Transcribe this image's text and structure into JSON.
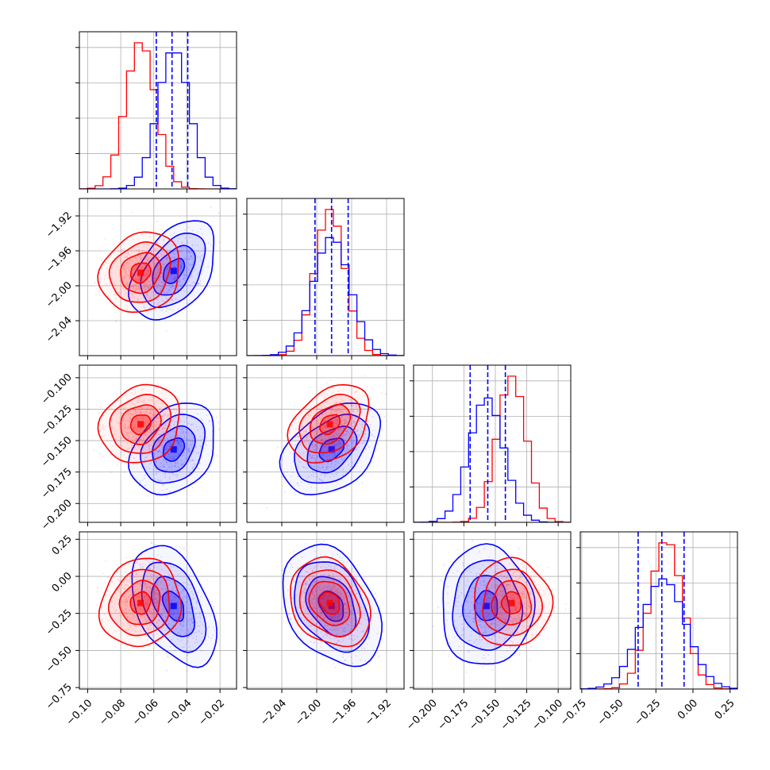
{
  "chart_data": {
    "type": "corner",
    "parameters": 4,
    "series": [
      {
        "name": "red-samples",
        "color": "#ff0000"
      },
      {
        "name": "blue-samples",
        "color": "#0000ff"
      }
    ],
    "quantile_line_color": "#0000ff",
    "axes": [
      {
        "range": [
          -0.105,
          -0.01
        ],
        "ticks": [
          -0.1,
          -0.08,
          -0.06,
          -0.04,
          -0.02
        ],
        "tick_labels": [
          "−0.10",
          "−0.08",
          "−0.06",
          "−0.04",
          "−0.02"
        ],
        "red": {
          "mean": -0.068,
          "sd": 0.009
        },
        "blue": {
          "mean": -0.048,
          "sd": 0.0095
        },
        "quantiles": [
          -0.0585,
          -0.049,
          -0.0395
        ]
      },
      {
        "range": [
          -2.08,
          -1.9
        ],
        "ticks": [
          -2.04,
          -2.0,
          -1.96,
          -1.92
        ],
        "tick_labels": [
          "−2.04",
          "−2.00",
          "−1.96",
          "−1.92"
        ],
        "red": {
          "mean": -1.985,
          "sd": 0.017
        },
        "blue": {
          "mean": -1.983,
          "sd": 0.021
        },
        "quantiles": [
          -2.002,
          -1.983,
          -1.964
        ]
      },
      {
        "range": [
          -0.215,
          -0.09
        ],
        "ticks": [
          -0.2,
          -0.175,
          -0.15,
          -0.125,
          -0.1
        ],
        "tick_labels": [
          "−0.200",
          "−0.175",
          "−0.150",
          "−0.125",
          "−0.100"
        ],
        "red": {
          "mean": -0.137,
          "sd": 0.0115
        },
        "blue": {
          "mean": -0.157,
          "sd": 0.0135
        },
        "quantiles": [
          -0.17,
          -0.156,
          -0.142
        ]
      },
      {
        "range": [
          -0.76,
          0.3
        ],
        "ticks": [
          -0.75,
          -0.5,
          -0.25,
          0.0,
          0.25
        ],
        "tick_labels": [
          "−0.75",
          "−0.50",
          "−0.25",
          "0.00",
          "0.25"
        ],
        "red": {
          "mean": -0.18,
          "sd": 0.11
        },
        "blue": {
          "mean": -0.2,
          "sd": 0.15
        },
        "quantiles": [
          -0.37,
          -0.21,
          -0.06
        ]
      }
    ],
    "correlations": {
      "1_0": {
        "red": 0.15,
        "blue": 0.45
      },
      "2_0": {
        "red": 0.15,
        "blue": 0.3
      },
      "2_1": {
        "red": 0.35,
        "blue": 0.4
      },
      "3_0": {
        "red": 0.1,
        "blue": -0.45
      },
      "3_1": {
        "red": -0.25,
        "blue": -0.35
      },
      "3_2": {
        "red": 0.0,
        "blue": 0.0
      }
    },
    "contour_levels_sigma": [
      0.5,
      1.0,
      1.5,
      2.0
    ],
    "grid": true,
    "legend": "none"
  }
}
